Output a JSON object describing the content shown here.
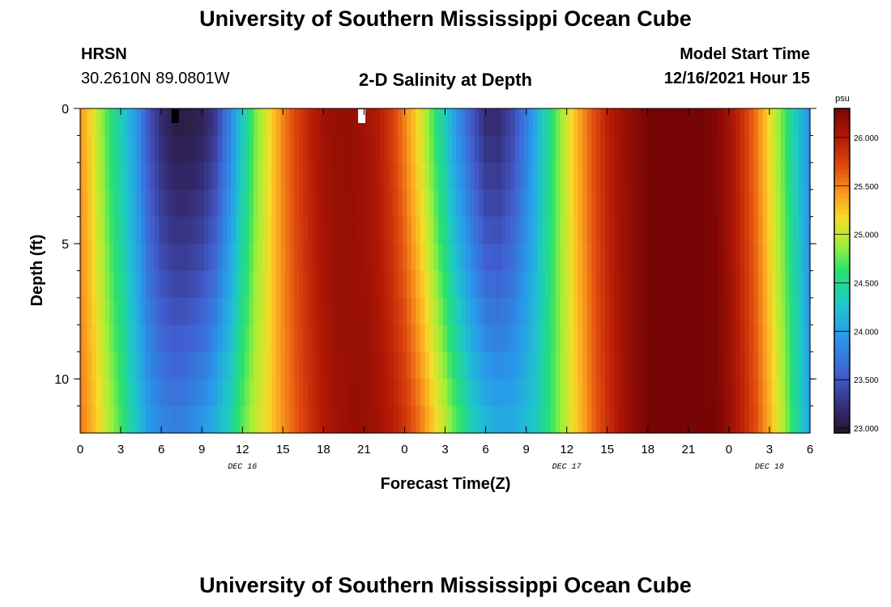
{
  "header": {
    "title_top": "University of Southern Mississippi Ocean Cube",
    "title_bottom": "University of Southern Mississippi Ocean Cube",
    "station": "HRSN",
    "coords": "30.2610N  89.0801W",
    "chart_title": "2-D Salinity at Depth",
    "model_label": "Model Start Time",
    "model_time": "12/16/2021 Hour 15"
  },
  "chart_data": {
    "type": "heatmap",
    "title": "2-D Salinity at Depth",
    "xlabel": "Forecast Time(Z)",
    "ylabel": "Depth (ft)",
    "x_tick_labels": [
      "0",
      "3",
      "6",
      "9",
      "12",
      "15",
      "18",
      "21",
      "0",
      "3",
      "6",
      "9",
      "12",
      "15",
      "18",
      "21",
      "0",
      "3",
      "6"
    ],
    "x_tick_hours": [
      0,
      3,
      6,
      9,
      12,
      15,
      18,
      21,
      24,
      27,
      30,
      33,
      36,
      39,
      42,
      45,
      48,
      51,
      54
    ],
    "date_labels": [
      {
        "label": "DEC 16",
        "hour": 12
      },
      {
        "label": "DEC 17",
        "hour": 36
      },
      {
        "label": "DEC 18",
        "hour": 51
      }
    ],
    "xlim": [
      0,
      54
    ],
    "y_tick_labels": [
      "0",
      "5",
      "10"
    ],
    "y_tick_values": [
      0,
      5,
      10
    ],
    "ylim": [
      0,
      12
    ],
    "y_inverted": true,
    "colorbar": {
      "unit": "psu",
      "min": 22.95,
      "max": 26.3,
      "tick_labels": [
        "23.000",
        "23.500",
        "24.000",
        "24.500",
        "25.000",
        "25.500",
        "26.000"
      ],
      "tick_values": [
        23.0,
        23.5,
        24.0,
        24.5,
        25.0,
        25.5,
        26.0
      ]
    },
    "salinity_surface_by_hour": [
      [
        0,
        25.45
      ],
      [
        1,
        25.1
      ],
      [
        2,
        24.7
      ],
      [
        3,
        24.35
      ],
      [
        4,
        24.0
      ],
      [
        5,
        23.5
      ],
      [
        6,
        23.2
      ],
      [
        7,
        23.05
      ],
      [
        8,
        23.05
      ],
      [
        9,
        23.1
      ],
      [
        10,
        23.3
      ],
      [
        11,
        23.75
      ],
      [
        12,
        24.3
      ],
      [
        13,
        24.8
      ],
      [
        14,
        25.15
      ],
      [
        15,
        25.5
      ],
      [
        16,
        25.75
      ],
      [
        17,
        25.95
      ],
      [
        18,
        26.1
      ],
      [
        19,
        26.15
      ],
      [
        20,
        26.15
      ],
      [
        21,
        26.1
      ],
      [
        22,
        26.0
      ],
      [
        23,
        25.8
      ],
      [
        24,
        25.5
      ],
      [
        25,
        25.15
      ],
      [
        26,
        24.75
      ],
      [
        27,
        24.3
      ],
      [
        28,
        23.85
      ],
      [
        29,
        23.5
      ],
      [
        30,
        23.2
      ],
      [
        31,
        23.2
      ],
      [
        32,
        23.4
      ],
      [
        33,
        23.75
      ],
      [
        34,
        24.2
      ],
      [
        35,
        24.65
      ],
      [
        36,
        25.05
      ],
      [
        37,
        25.4
      ],
      [
        38,
        25.7
      ],
      [
        39,
        25.95
      ],
      [
        40,
        26.1
      ],
      [
        41,
        26.2
      ],
      [
        42,
        26.3
      ],
      [
        43,
        26.3
      ],
      [
        44,
        26.3
      ],
      [
        45,
        26.3
      ],
      [
        46,
        26.3
      ],
      [
        47,
        26.25
      ],
      [
        48,
        26.1
      ],
      [
        49,
        25.85
      ],
      [
        50,
        25.55
      ],
      [
        51,
        25.15
      ],
      [
        52,
        24.75
      ],
      [
        53,
        24.3
      ],
      [
        54,
        23.85
      ]
    ],
    "salinity_bottom_by_hour": [
      [
        0,
        25.55
      ],
      [
        1,
        25.3
      ],
      [
        2,
        25.0
      ],
      [
        3,
        24.7
      ],
      [
        4,
        24.35
      ],
      [
        5,
        24.0
      ],
      [
        6,
        23.85
      ],
      [
        7,
        23.8
      ],
      [
        8,
        23.85
      ],
      [
        9,
        23.95
      ],
      [
        10,
        24.15
      ],
      [
        11,
        24.4
      ],
      [
        12,
        24.75
      ],
      [
        13,
        25.0
      ],
      [
        14,
        25.2
      ],
      [
        15,
        25.45
      ],
      [
        16,
        25.65
      ],
      [
        17,
        25.85
      ],
      [
        18,
        26.0
      ],
      [
        19,
        26.1
      ],
      [
        20,
        26.15
      ],
      [
        21,
        26.15
      ],
      [
        22,
        26.1
      ],
      [
        23,
        26.0
      ],
      [
        24,
        25.85
      ],
      [
        25,
        25.6
      ],
      [
        26,
        25.3
      ],
      [
        27,
        25.0
      ],
      [
        28,
        24.7
      ],
      [
        29,
        24.4
      ],
      [
        30,
        24.2
      ],
      [
        31,
        24.1
      ],
      [
        32,
        24.1
      ],
      [
        33,
        24.2
      ],
      [
        34,
        24.4
      ],
      [
        35,
        24.7
      ],
      [
        36,
        25.0
      ],
      [
        37,
        25.3
      ],
      [
        38,
        25.6
      ],
      [
        39,
        25.85
      ],
      [
        40,
        26.05
      ],
      [
        41,
        26.2
      ],
      [
        42,
        26.3
      ],
      [
        43,
        26.3
      ],
      [
        44,
        26.3
      ],
      [
        45,
        26.3
      ],
      [
        46,
        26.3
      ],
      [
        47,
        26.3
      ],
      [
        48,
        26.15
      ],
      [
        49,
        25.95
      ],
      [
        50,
        25.7
      ],
      [
        51,
        25.35
      ],
      [
        52,
        24.95
      ],
      [
        53,
        24.5
      ],
      [
        54,
        24.0
      ]
    ],
    "markers": [
      {
        "hour": 7,
        "color": "#000000"
      },
      {
        "hour": 20.8,
        "color": "#ffffff"
      }
    ]
  }
}
